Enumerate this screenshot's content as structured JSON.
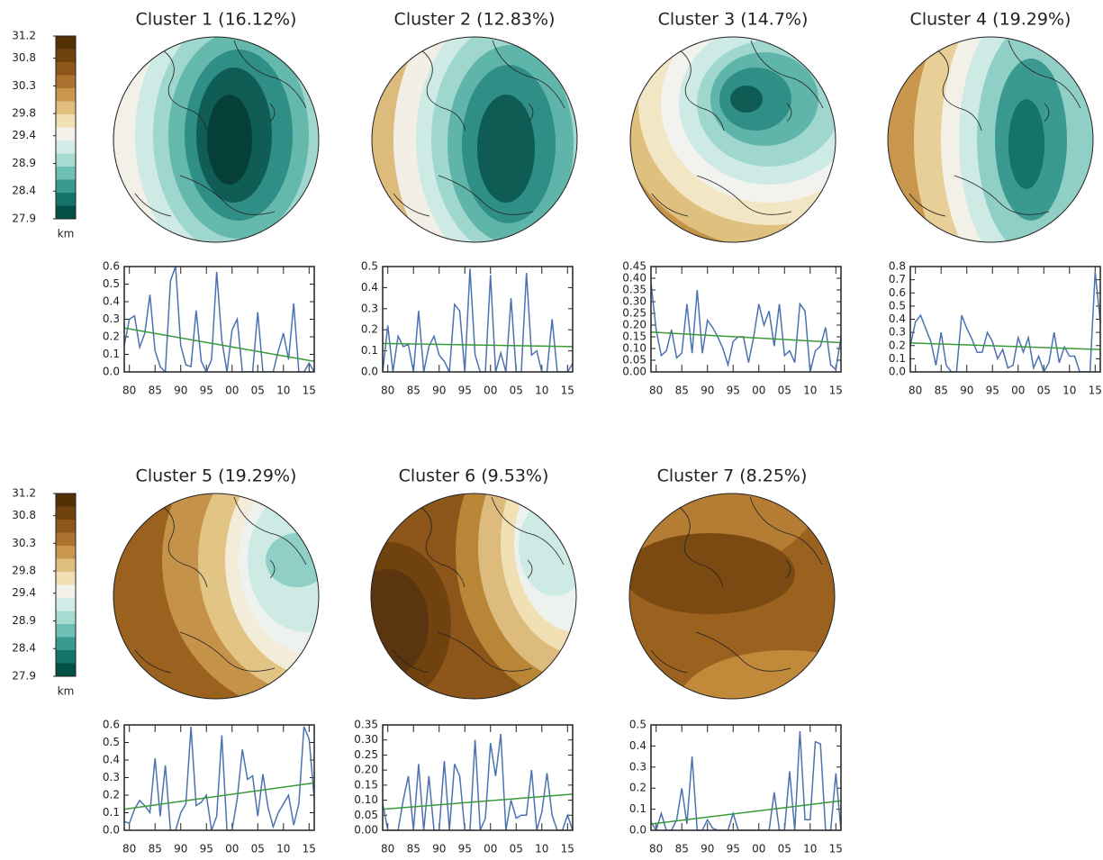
{
  "colorbar": {
    "lim": [
      27.9,
      31.2
    ],
    "ticks": [
      31.2,
      30.8,
      30.3,
      29.8,
      29.4,
      28.9,
      28.4,
      27.9
    ],
    "label": "km",
    "colors": [
      "#543005",
      "#6f420e",
      "#8c551a",
      "#ab7230",
      "#c8974d",
      "#dfbe7f",
      "#f1e0b4",
      "#f4f1ea",
      "#d3ece7",
      "#a6dbd2",
      "#6fc0b4",
      "#3b9a90",
      "#157369",
      "#024f46"
    ]
  },
  "chart_data": [
    {
      "type": "line",
      "title": "Cluster 1  (16.12%)",
      "xlim": [
        1979,
        2016
      ],
      "x": [
        1979,
        1980,
        1981,
        1982,
        1983,
        1984,
        1985,
        1986,
        1987,
        1988,
        1989,
        1990,
        1991,
        1992,
        1993,
        1994,
        1995,
        1996,
        1997,
        1998,
        1999,
        2000,
        2001,
        2002,
        2003,
        2004,
        2005,
        2006,
        2007,
        2008,
        2009,
        2010,
        2011,
        2012,
        2013,
        2014,
        2015,
        2016
      ],
      "xticks": [
        {
          "value": 1980,
          "label": "80"
        },
        {
          "value": 1985,
          "label": "85"
        },
        {
          "value": 1990,
          "label": "90"
        },
        {
          "value": 1995,
          "label": "95"
        },
        {
          "value": 2000,
          "label": "00"
        },
        {
          "value": 2005,
          "label": "05"
        },
        {
          "value": 2010,
          "label": "10"
        },
        {
          "value": 2015,
          "label": "15"
        }
      ],
      "ylim": [
        0,
        0.6
      ],
      "yticks": [
        {
          "value": 0,
          "label": "0.0"
        },
        0.1,
        0.2,
        0.3,
        0.4,
        0.5,
        0.6
      ],
      "series": [
        {
          "color": "#4c72b0",
          "values": [
            0.15,
            0.3,
            0.32,
            0.14,
            0.22,
            0.44,
            0.12,
            0.03,
            0,
            0.52,
            0.6,
            0.15,
            0.04,
            0.03,
            0.35,
            0.06,
            0,
            0.07,
            0.57,
            0.18,
            0,
            0.24,
            0.3,
            0,
            0,
            0,
            0.34,
            0,
            0,
            0,
            0.12,
            0.22,
            0.07,
            0.39,
            0,
            0,
            0.05,
            0
          ]
        },
        {
          "color": "#3a9a3a",
          "x": [
            1979,
            2016
          ],
          "values": [
            0.25,
            0.06
          ]
        }
      ]
    },
    {
      "type": "line",
      "title": "Cluster 2  (12.83%)",
      "xlim": [
        1979,
        2016
      ],
      "x": [
        1979,
        1980,
        1981,
        1982,
        1983,
        1984,
        1985,
        1986,
        1987,
        1988,
        1989,
        1990,
        1991,
        1992,
        1993,
        1994,
        1995,
        1996,
        1997,
        1998,
        1999,
        2000,
        2001,
        2002,
        2003,
        2004,
        2005,
        2006,
        2007,
        2008,
        2009,
        2010,
        2011,
        2012,
        2013,
        2014,
        2015,
        2016
      ],
      "xticks": [
        {
          "value": 1980,
          "label": "80"
        },
        {
          "value": 1985,
          "label": "85"
        },
        {
          "value": 1990,
          "label": "90"
        },
        {
          "value": 1995,
          "label": "95"
        },
        {
          "value": 2000,
          "label": "00"
        },
        {
          "value": 2005,
          "label": "05"
        },
        {
          "value": 2010,
          "label": "10"
        },
        {
          "value": 2015,
          "label": "15"
        }
      ],
      "ylim": [
        0,
        0.5
      ],
      "yticks": [
        {
          "value": 0,
          "label": "0.0"
        },
        0.1,
        0.2,
        0.3,
        0.4,
        0.5
      ],
      "series": [
        {
          "color": "#4c72b0",
          "values": [
            0,
            0.22,
            0,
            0.17,
            0.12,
            0.13,
            0,
            0.29,
            0,
            0.12,
            0.17,
            0.08,
            0.05,
            0,
            0.32,
            0.29,
            0,
            0.49,
            0.08,
            0,
            0,
            0.46,
            0,
            0.09,
            0,
            0.35,
            0,
            0,
            0.47,
            0.08,
            0.1,
            0,
            0,
            0.25,
            0,
            0,
            0,
            0.04
          ]
        },
        {
          "color": "#3a9a3a",
          "x": [
            1979,
            2016
          ],
          "values": [
            0.135,
            0.12
          ]
        }
      ]
    },
    {
      "type": "line",
      "title": "Cluster 3  (14.7%)",
      "xlim": [
        1979,
        2016
      ],
      "x": [
        1979,
        1980,
        1981,
        1982,
        1983,
        1984,
        1985,
        1986,
        1987,
        1988,
        1989,
        1990,
        1991,
        1992,
        1993,
        1994,
        1995,
        1996,
        1997,
        1998,
        1999,
        2000,
        2001,
        2002,
        2003,
        2004,
        2005,
        2006,
        2007,
        2008,
        2009,
        2010,
        2011,
        2012,
        2013,
        2014,
        2015,
        2016
      ],
      "xticks": [
        {
          "value": 1980,
          "label": "80"
        },
        {
          "value": 1985,
          "label": "85"
        },
        {
          "value": 1990,
          "label": "90"
        },
        {
          "value": 1995,
          "label": "95"
        },
        {
          "value": 2000,
          "label": "00"
        },
        {
          "value": 2005,
          "label": "05"
        },
        {
          "value": 2010,
          "label": "10"
        },
        {
          "value": 2015,
          "label": "15"
        }
      ],
      "ylim": [
        0,
        0.45
      ],
      "yticks": [
        {
          "value": 0,
          "label": "0.00"
        },
        0.05,
        {
          "value": 0.1,
          "label": "0.10"
        },
        0.15,
        {
          "value": 0.2,
          "label": "0.20"
        },
        0.25,
        {
          "value": 0.3,
          "label": "0.30"
        },
        0.35,
        {
          "value": 0.4,
          "label": "0.40"
        },
        0.45
      ],
      "series": [
        {
          "color": "#4c72b0",
          "values": [
            0.38,
            0.18,
            0.07,
            0.09,
            0.18,
            0.06,
            0.08,
            0.29,
            0.08,
            0.35,
            0.08,
            0.22,
            0.19,
            0.15,
            0.1,
            0.03,
            0.13,
            0.15,
            0.15,
            0.04,
            0.15,
            0.29,
            0.2,
            0.26,
            0.11,
            0.29,
            0.07,
            0.09,
            0.04,
            0.29,
            0.26,
            0,
            0.09,
            0.11,
            0.19,
            0.03,
            0.01,
            0.15
          ]
        },
        {
          "color": "#3a9a3a",
          "x": [
            1979,
            2016
          ],
          "values": [
            0.17,
            0.125
          ]
        }
      ]
    },
    {
      "type": "line",
      "title": "Cluster 4  (19.29%)",
      "xlim": [
        1979,
        2016
      ],
      "x": [
        1979,
        1980,
        1981,
        1982,
        1983,
        1984,
        1985,
        1986,
        1987,
        1988,
        1989,
        1990,
        1991,
        1992,
        1993,
        1994,
        1995,
        1996,
        1997,
        1998,
        1999,
        2000,
        2001,
        2002,
        2003,
        2004,
        2005,
        2006,
        2007,
        2008,
        2009,
        2010,
        2011,
        2012,
        2013,
        2014,
        2015,
        2016
      ],
      "xticks": [
        {
          "value": 1980,
          "label": "80"
        },
        {
          "value": 1985,
          "label": "85"
        },
        {
          "value": 1990,
          "label": "90"
        },
        {
          "value": 1995,
          "label": "95"
        },
        {
          "value": 2000,
          "label": "00"
        },
        {
          "value": 2005,
          "label": "05"
        },
        {
          "value": 2010,
          "label": "10"
        },
        {
          "value": 2015,
          "label": "15"
        }
      ],
      "ylim": [
        0,
        0.8
      ],
      "yticks": [
        {
          "value": 0,
          "label": "0.0"
        },
        0.1,
        0.2,
        0.3,
        0.4,
        0.5,
        0.6,
        0.7,
        0.8
      ],
      "series": [
        {
          "color": "#4c72b0",
          "values": [
            0.2,
            0.38,
            0.43,
            0.33,
            0.23,
            0.05,
            0.3,
            0.05,
            0,
            0,
            0.43,
            0.33,
            0.25,
            0.15,
            0.15,
            0.3,
            0.23,
            0.1,
            0.17,
            0.03,
            0.05,
            0.26,
            0.15,
            0.26,
            0.03,
            0.12,
            0,
            0.07,
            0.3,
            0.07,
            0.19,
            0.12,
            0.12,
            0,
            0,
            0,
            0.76,
            0.38
          ]
        },
        {
          "color": "#3a9a3a",
          "x": [
            1979,
            2016
          ],
          "values": [
            0.22,
            0.17
          ]
        }
      ]
    },
    {
      "type": "line",
      "title": "Cluster 5  (19.29%)",
      "xlim": [
        1979,
        2016
      ],
      "x": [
        1979,
        1980,
        1981,
        1982,
        1983,
        1984,
        1985,
        1986,
        1987,
        1988,
        1989,
        1990,
        1991,
        1992,
        1993,
        1994,
        1995,
        1996,
        1997,
        1998,
        1999,
        2000,
        2001,
        2002,
        2003,
        2004,
        2005,
        2006,
        2007,
        2008,
        2009,
        2010,
        2011,
        2012,
        2013,
        2014,
        2015,
        2016
      ],
      "xticks": [
        {
          "value": 1980,
          "label": "80"
        },
        {
          "value": 1985,
          "label": "85"
        },
        {
          "value": 1990,
          "label": "90"
        },
        {
          "value": 1995,
          "label": "95"
        },
        {
          "value": 2000,
          "label": "00"
        },
        {
          "value": 2005,
          "label": "05"
        },
        {
          "value": 2010,
          "label": "10"
        },
        {
          "value": 2015,
          "label": "15"
        }
      ],
      "ylim": [
        0,
        0.6
      ],
      "yticks": [
        {
          "value": 0,
          "label": "0.0"
        },
        0.1,
        0.2,
        0.3,
        0.4,
        0.5,
        0.6
      ],
      "series": [
        {
          "color": "#4c72b0",
          "values": [
            0.05,
            0.04,
            0.12,
            0.17,
            0.14,
            0.1,
            0.41,
            0.08,
            0.37,
            0,
            0,
            0.1,
            0.15,
            0.59,
            0.14,
            0.16,
            0.2,
            0,
            0.08,
            0.54,
            0,
            0,
            0.18,
            0.46,
            0.29,
            0.31,
            0.08,
            0.32,
            0.13,
            0.02,
            0.1,
            0.15,
            0.2,
            0.03,
            0.15,
            0.59,
            0.52,
            0.18
          ]
        },
        {
          "color": "#3a9a3a",
          "x": [
            1979,
            2016
          ],
          "values": [
            0.12,
            0.27
          ]
        }
      ]
    },
    {
      "type": "line",
      "title": "Cluster 6  (9.53%)",
      "xlim": [
        1979,
        2016
      ],
      "x": [
        1979,
        1980,
        1981,
        1982,
        1983,
        1984,
        1985,
        1986,
        1987,
        1988,
        1989,
        1990,
        1991,
        1992,
        1993,
        1994,
        1995,
        1996,
        1997,
        1998,
        1999,
        2000,
        2001,
        2002,
        2003,
        2004,
        2005,
        2006,
        2007,
        2008,
        2009,
        2010,
        2011,
        2012,
        2013,
        2014,
        2015,
        2016
      ],
      "xticks": [
        {
          "value": 1980,
          "label": "80"
        },
        {
          "value": 1985,
          "label": "85"
        },
        {
          "value": 1990,
          "label": "90"
        },
        {
          "value": 1995,
          "label": "95"
        },
        {
          "value": 2000,
          "label": "00"
        },
        {
          "value": 2005,
          "label": "05"
        },
        {
          "value": 2010,
          "label": "10"
        },
        {
          "value": 2015,
          "label": "15"
        }
      ],
      "ylim": [
        0,
        0.35
      ],
      "yticks": [
        {
          "value": 0,
          "label": "0.00"
        },
        0.05,
        {
          "value": 0.1,
          "label": "0.10"
        },
        0.15,
        {
          "value": 0.2,
          "label": "0.20"
        },
        0.25,
        {
          "value": 0.3,
          "label": "0.30"
        },
        0.35
      ],
      "series": [
        {
          "color": "#4c72b0",
          "values": [
            0.09,
            0,
            0,
            0,
            0.1,
            0.18,
            0,
            0.22,
            0,
            0.18,
            0,
            0,
            0.23,
            0,
            0.22,
            0.18,
            0,
            0,
            0.3,
            0,
            0.04,
            0.29,
            0.18,
            0.32,
            0,
            0.1,
            0.04,
            0.05,
            0.05,
            0.2,
            0,
            0.06,
            0.19,
            0.05,
            0,
            0,
            0.05,
            0
          ]
        },
        {
          "color": "#3a9a3a",
          "x": [
            1979,
            2016
          ],
          "values": [
            0.07,
            0.12
          ]
        }
      ]
    },
    {
      "type": "line",
      "title": "Cluster 7  (8.25%)",
      "xlim": [
        1979,
        2016
      ],
      "x": [
        1979,
        1980,
        1981,
        1982,
        1983,
        1984,
        1985,
        1986,
        1987,
        1988,
        1989,
        1990,
        1991,
        1992,
        1993,
        1994,
        1995,
        1996,
        1997,
        1998,
        1999,
        2000,
        2001,
        2002,
        2003,
        2004,
        2005,
        2006,
        2007,
        2008,
        2009,
        2010,
        2011,
        2012,
        2013,
        2014,
        2015,
        2016
      ],
      "xticks": [
        {
          "value": 1980,
          "label": "80"
        },
        {
          "value": 1985,
          "label": "85"
        },
        {
          "value": 1990,
          "label": "90"
        },
        {
          "value": 1995,
          "label": "95"
        },
        {
          "value": 2000,
          "label": "00"
        },
        {
          "value": 2005,
          "label": "05"
        },
        {
          "value": 2010,
          "label": "10"
        },
        {
          "value": 2015,
          "label": "15"
        }
      ],
      "ylim": [
        0,
        0.5
      ],
      "yticks": [
        {
          "value": 0,
          "label": "0.0"
        },
        0.1,
        0.2,
        0.3,
        0.4,
        0.5
      ],
      "series": [
        {
          "color": "#4c72b0",
          "values": [
            0.04,
            0,
            0.08,
            0,
            0,
            0.05,
            0.2,
            0.03,
            0.35,
            0,
            0,
            0.05,
            0.01,
            0,
            0,
            0,
            0.08,
            0,
            0,
            0,
            0,
            0,
            0,
            0,
            0.18,
            0,
            0,
            0.28,
            0,
            0.47,
            0.05,
            0.05,
            0.42,
            0.41,
            0,
            0,
            0.27,
            0
          ]
        },
        {
          "color": "#3a9a3a",
          "x": [
            1979,
            2016
          ],
          "values": [
            0.03,
            0.14
          ]
        }
      ]
    }
  ]
}
